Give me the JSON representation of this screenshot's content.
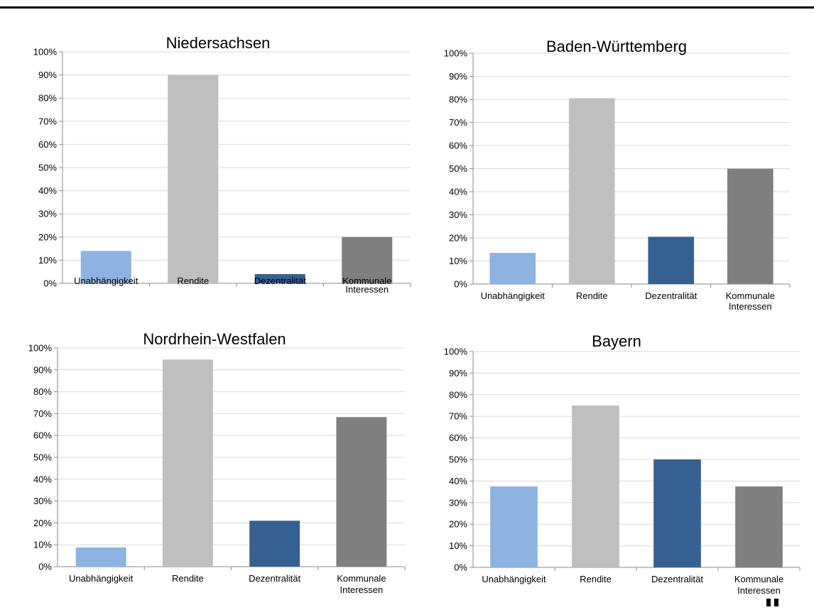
{
  "chart_data": [
    {
      "type": "bar",
      "title": "Niedersachsen",
      "categories": [
        "Unabhängigkeit",
        "Rendite",
        "Dezentralität",
        "Kommunale Interessen"
      ],
      "values": [
        14,
        90,
        4,
        20
      ],
      "ylim": [
        0,
        100
      ],
      "yticks": [
        "0%",
        "10%",
        "20%",
        "30%",
        "40%",
        "50%",
        "60%",
        "70%",
        "80%",
        "90%",
        "100%"
      ],
      "grid": true,
      "legend": "none"
    },
    {
      "type": "bar",
      "title": "Baden-Württemberg",
      "categories": [
        "Unabhängigkeit",
        "Rendite",
        "Dezentralität",
        "Kommunale Interessen"
      ],
      "values": [
        13.5,
        80.5,
        20.5,
        50
      ],
      "ylim": [
        0,
        100
      ],
      "yticks": [
        "0%",
        "10%",
        "20%",
        "30%",
        "40%",
        "50%",
        "60%",
        "70%",
        "80%",
        "90%",
        "100%"
      ],
      "grid": true,
      "legend": "none"
    },
    {
      "type": "bar",
      "title": "Nordrhein-Westfalen",
      "categories": [
        "Unabhängigkeit",
        "Rendite",
        "Dezentralität",
        "Kommunale Interessen"
      ],
      "values": [
        8.8,
        94.7,
        21,
        68.4
      ],
      "ylim": [
        0,
        100
      ],
      "yticks": [
        "0%",
        "10%",
        "20%",
        "30%",
        "40%",
        "50%",
        "60%",
        "70%",
        "80%",
        "90%",
        "100%"
      ],
      "grid": true,
      "legend": "none"
    },
    {
      "type": "bar",
      "title": "Bayern",
      "categories": [
        "Unabhängigkeit",
        "Rendite",
        "Dezentralität",
        "Kommunale Interessen"
      ],
      "values": [
        37.5,
        75,
        50,
        37.5
      ],
      "ylim": [
        0,
        100
      ],
      "yticks": [
        "0%",
        "10%",
        "20%",
        "30%",
        "40%",
        "50%",
        "60%",
        "70%",
        "80%",
        "90%",
        "100%"
      ],
      "grid": true,
      "legend": "none"
    }
  ],
  "colors": {
    "bars": [
      "#8db3e2",
      "#bfbfbf",
      "#376092",
      "#7f7f7f"
    ],
    "grid": "#d9d9d9",
    "axis": "#898989",
    "top_rule": "#000000"
  }
}
